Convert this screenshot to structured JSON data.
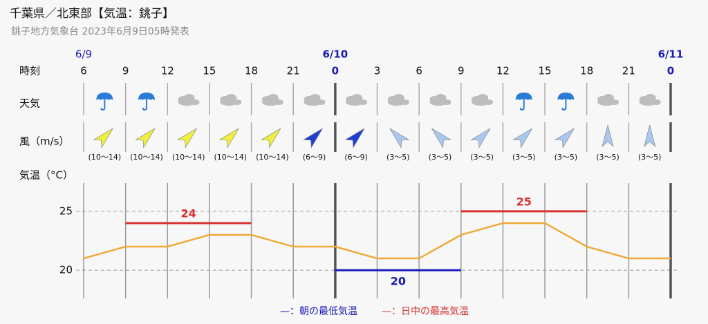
{
  "header": {
    "title": "千葉県／北東部【気温：銚子】",
    "subtitle": "銚子地方気象台 2023年6月9日05時発表"
  },
  "chart_data": {
    "type": "line",
    "row_labels": {
      "time": "時刻",
      "weather": "天気",
      "wind": "風（m/s）",
      "temperature": "気温（°C）"
    },
    "dates": [
      "6/9",
      null,
      null,
      null,
      null,
      null,
      "6/10",
      null,
      null,
      null,
      null,
      null,
      null,
      null,
      "6/11"
    ],
    "categories": [
      "6",
      "9",
      "12",
      "15",
      "18",
      "21",
      "0",
      "3",
      "6",
      "9",
      "12",
      "15",
      "18",
      "21",
      "0"
    ],
    "weather": [
      "rain",
      "rain",
      "cloudy",
      "cloudy",
      "cloudy",
      "cloudy",
      "cloudy",
      "cloudy",
      "cloudy",
      "cloudy",
      "rain",
      "rain",
      "cloudy",
      "cloudy"
    ],
    "wind": [
      {
        "label": "(10～14)",
        "direction": "SW",
        "color": "#f0f03c"
      },
      {
        "label": "(10～14)",
        "direction": "SW",
        "color": "#f0f03c"
      },
      {
        "label": "(10～14)",
        "direction": "SW",
        "color": "#f0f03c"
      },
      {
        "label": "(10～14)",
        "direction": "SW",
        "color": "#f0f03c"
      },
      {
        "label": "(10～14)",
        "direction": "SW",
        "color": "#f0f03c"
      },
      {
        "label": "(6～9)",
        "direction": "SW",
        "color": "#1f3fd0"
      },
      {
        "label": "(6～9)",
        "direction": "SW",
        "color": "#1f3fd0"
      },
      {
        "label": "(3～5)",
        "direction": "SE",
        "color": "#a8c8f0"
      },
      {
        "label": "(3～5)",
        "direction": "SE",
        "color": "#a8c8f0"
      },
      {
        "label": "(3～5)",
        "direction": "SW",
        "color": "#a8c8f0"
      },
      {
        "label": "(3～5)",
        "direction": "SW",
        "color": "#a8c8f0"
      },
      {
        "label": "(3～5)",
        "direction": "SW",
        "color": "#a8c8f0"
      },
      {
        "label": "(3～5)",
        "direction": "S",
        "color": "#a8c8f0"
      },
      {
        "label": "(3～5)",
        "direction": "S",
        "color": "#a8c8f0"
      }
    ],
    "series": [
      {
        "color": "#f0a838",
        "values": [
          21,
          22,
          22,
          23,
          23,
          22,
          22,
          21,
          21,
          23,
          24,
          24,
          22,
          21,
          21
        ]
      },
      {
        "name": "—：朝の最低気温",
        "color": "#1a1ab8",
        "values": [
          null,
          null,
          null,
          null,
          null,
          null,
          20,
          20,
          20,
          20,
          null,
          null,
          null,
          null,
          null
        ]
      },
      {
        "name": "—：日中の最高気温",
        "color": "#d83030",
        "values": [
          null,
          24,
          24,
          24,
          24,
          null,
          null,
          null,
          null,
          25,
          25,
          25,
          25,
          null,
          null
        ]
      }
    ],
    "ylim": [
      17.6,
      27.4
    ],
    "yticks": [
      20,
      25
    ],
    "grid": true
  }
}
